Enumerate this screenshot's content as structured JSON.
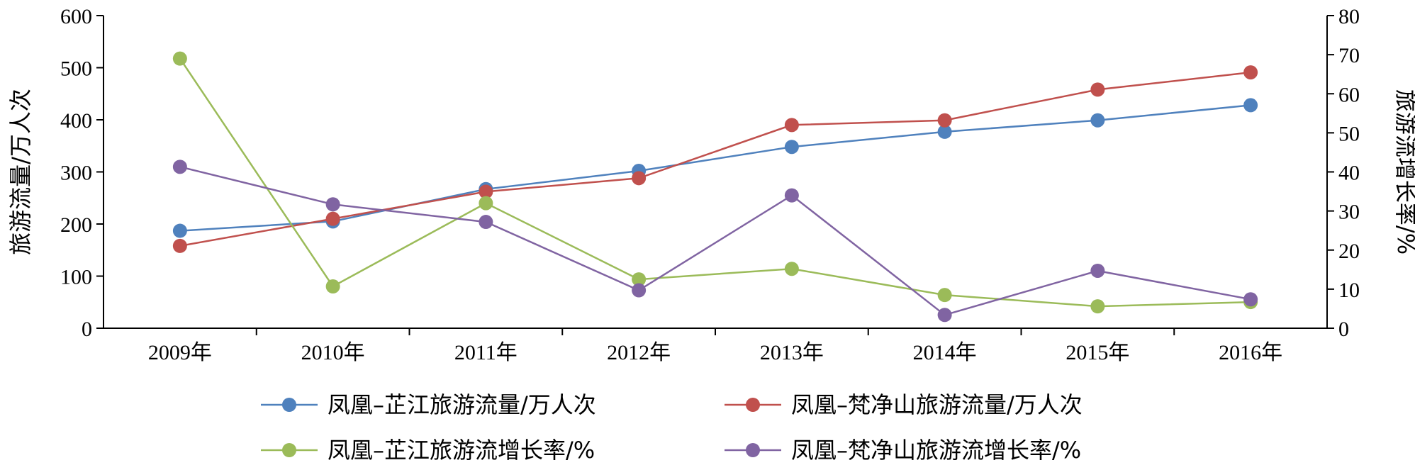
{
  "chart_data": {
    "type": "line",
    "categories": [
      "2009年",
      "2010年",
      "2011年",
      "2012年",
      "2013年",
      "2014年",
      "2015年",
      "2016年"
    ],
    "ylabel": "旅游流量/万人次",
    "y2label": "旅游流增长率/%",
    "ylim": [
      0,
      600
    ],
    "y2lim": [
      0,
      80
    ],
    "yticks": [
      "0",
      "100",
      "200",
      "300",
      "400",
      "500",
      "600"
    ],
    "y2ticks": [
      "0",
      "10",
      "20",
      "30",
      "40",
      "50",
      "60",
      "70",
      "80"
    ],
    "legend_position": "bottom",
    "grid": false,
    "series": [
      {
        "name": "凤凰–芷江旅游流量/万人次",
        "axis": "left",
        "color": "#4f81bd",
        "values": [
          187,
          205,
          267,
          302,
          348,
          377,
          399,
          428
        ]
      },
      {
        "name": "凤凰–梵净山旅游流量/万人次",
        "axis": "left",
        "color": "#c0504d",
        "values": [
          158,
          210,
          262,
          288,
          390,
          399,
          458,
          491
        ]
      },
      {
        "name": "凤凰–芷江旅游流增长率/%",
        "axis": "right",
        "color": "#9bbb59",
        "values": [
          69,
          10.7,
          32,
          12.5,
          15.2,
          8.5,
          5.6,
          6.7
        ]
      },
      {
        "name": "凤凰–梵净山旅游流增长率/%",
        "axis": "right",
        "color": "#8064a2",
        "values": [
          41.3,
          31.7,
          27.2,
          9.7,
          34,
          3.4,
          14.7,
          7.4
        ]
      }
    ]
  }
}
